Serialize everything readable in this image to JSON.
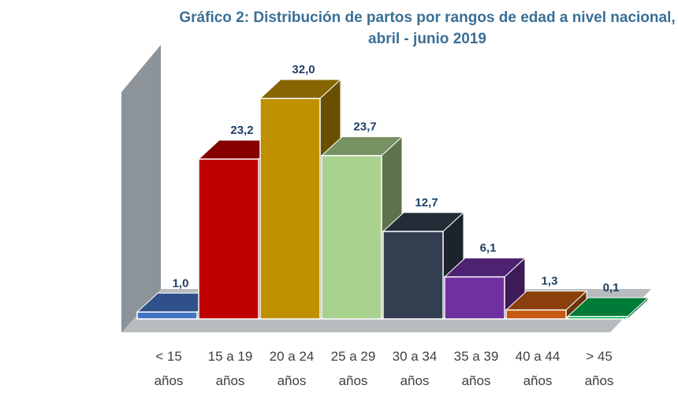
{
  "chart_data": {
    "type": "bar",
    "title_line1": "Gráfico 2: Distribución de partos por rangos de edad a nivel nacional,",
    "title_line2": "abril - junio 2019",
    "categories": [
      [
        "< 15",
        "años"
      ],
      [
        "15 a 19",
        "años"
      ],
      [
        "20 a 24",
        "años"
      ],
      [
        "25 a 29",
        "años"
      ],
      [
        "30 a 34",
        "años"
      ],
      [
        "35 a 39",
        "años"
      ],
      [
        "40 a 44",
        "años"
      ],
      [
        "> 45",
        "años"
      ]
    ],
    "values": [
      1.0,
      23.2,
      32.0,
      23.7,
      12.7,
      6.1,
      1.3,
      0.1
    ],
    "value_labels": [
      "1,0",
      "23,2",
      "32,0",
      "23,7",
      "12,7",
      "6,1",
      "1,3",
      "0,1"
    ],
    "colors": [
      "#4472c4",
      "#c00000",
      "#bf9000",
      "#a9d18e",
      "#333f50",
      "#7030a0",
      "#c55a11",
      "#00b050"
    ],
    "ylim": [
      0,
      32
    ],
    "grid": false,
    "legend": "none",
    "three_d": true
  }
}
